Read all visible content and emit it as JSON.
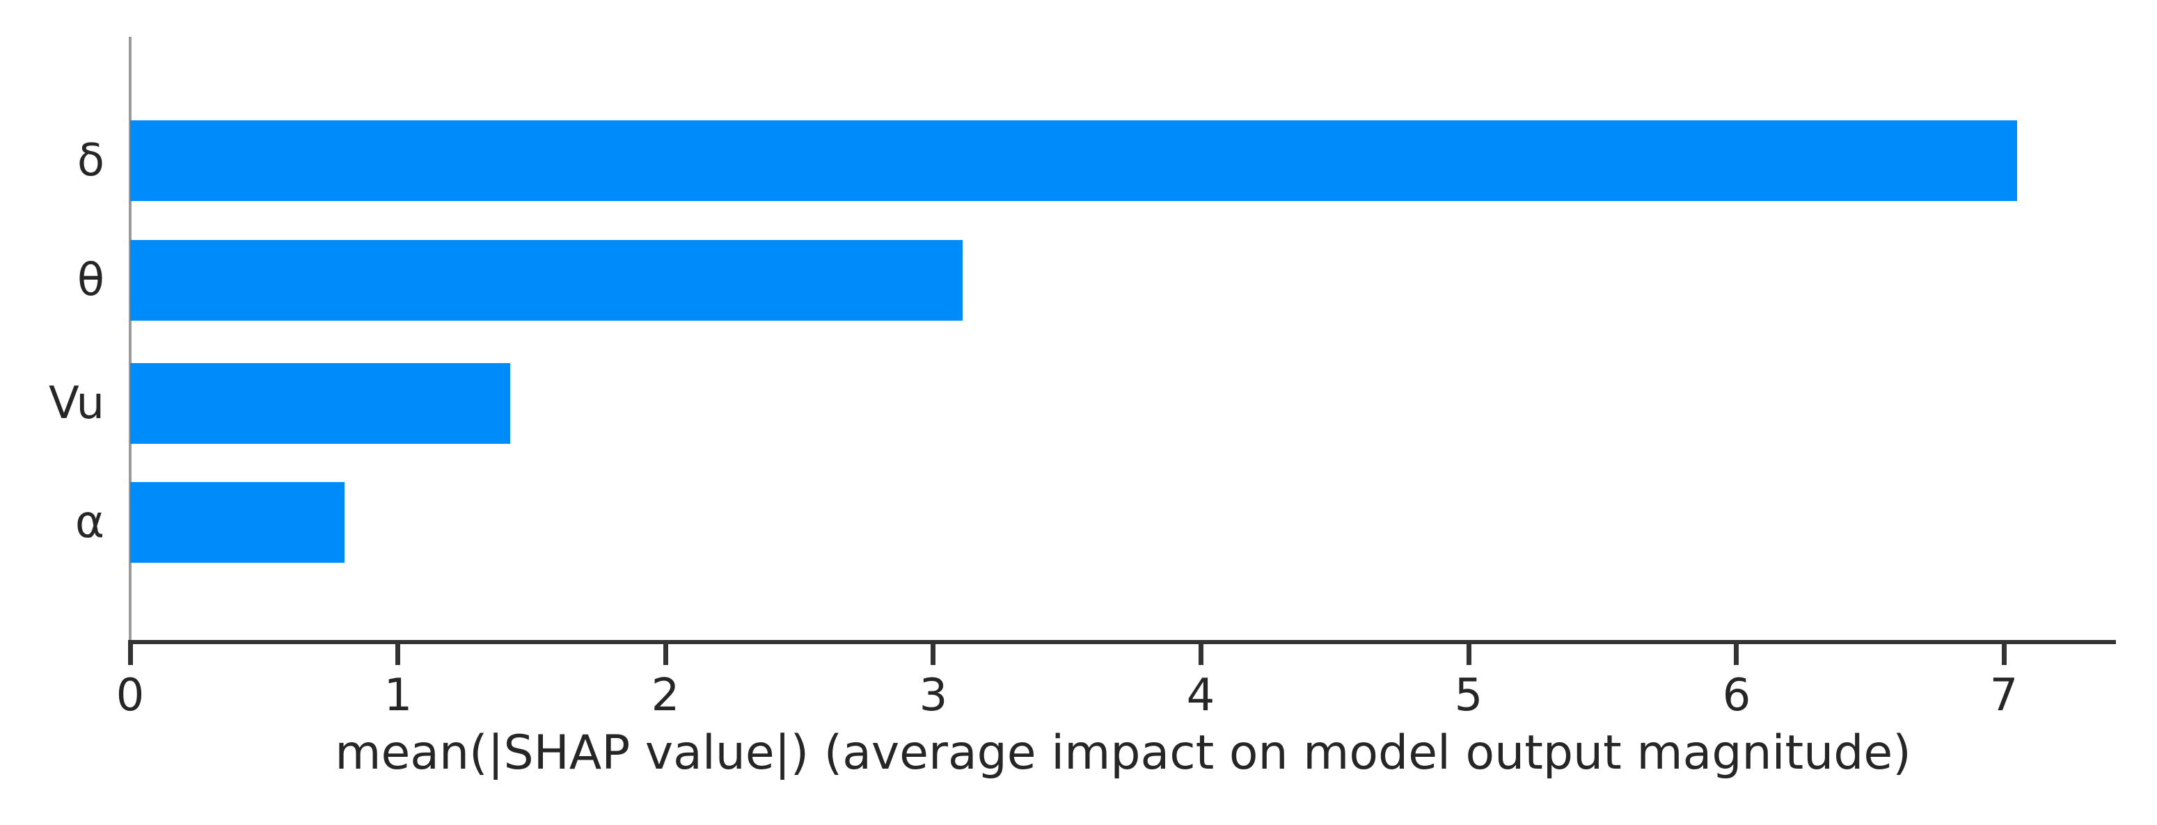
{
  "chart_data": {
    "type": "bar",
    "orientation": "horizontal",
    "title": "",
    "categories": [
      "δ",
      "θ",
      "Vu",
      "α"
    ],
    "category_slugs": [
      "delta",
      "theta",
      "vu",
      "alpha"
    ],
    "values": [
      7.05,
      3.11,
      1.42,
      0.8
    ],
    "xlabel": "mean(|SHAP value|) (average impact on model output magnitude)",
    "ylabel": "",
    "xticks": [
      "0",
      "1",
      "2",
      "3",
      "4",
      "5",
      "6",
      "7"
    ],
    "xtick_values": [
      0,
      1,
      2,
      3,
      4,
      5,
      6,
      7
    ],
    "xlim": [
      0,
      7.42
    ],
    "grid": false,
    "legend": "none",
    "colors": {
      "bar": "#008bfb",
      "left_spine": "#9a9a9a",
      "bottom_spine": "#333333",
      "tick_mark": "#333333",
      "text": "#262626"
    }
  }
}
